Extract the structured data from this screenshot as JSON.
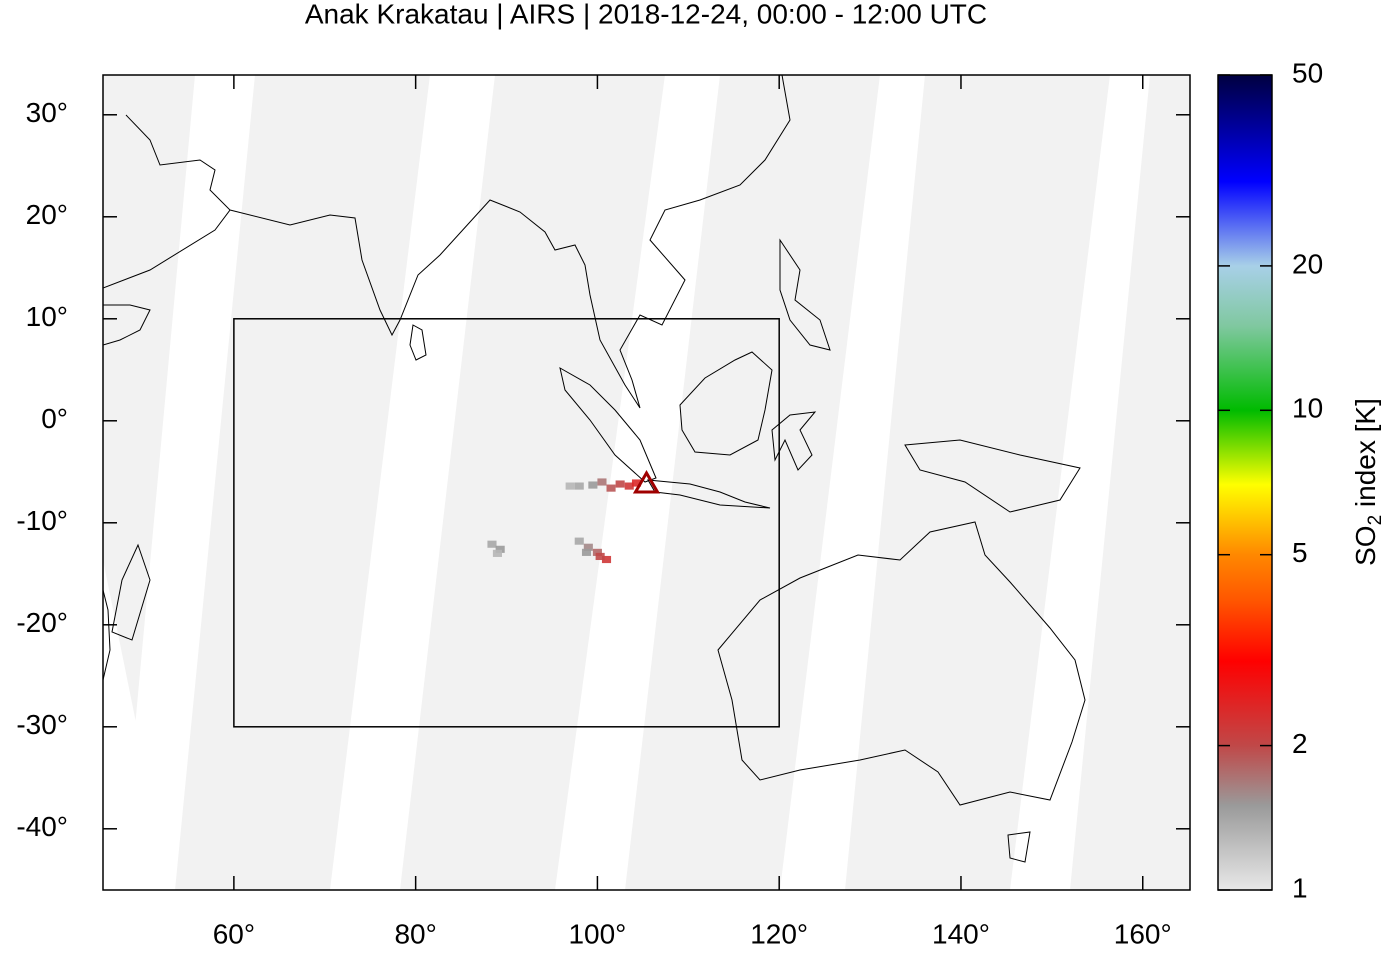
{
  "chart_data": {
    "type": "map",
    "title": "Anak Krakatau | AIRS | 2018-12-24, 00:00 - 12:00 UTC",
    "xlim": [
      45.6,
      165.2
    ],
    "ylim": [
      -46,
      33.9
    ],
    "xticks": [
      {
        "value": 60,
        "label": "60°"
      },
      {
        "value": 80,
        "label": "80°"
      },
      {
        "value": 100,
        "label": "100°"
      },
      {
        "value": 120,
        "label": "120°"
      },
      {
        "value": 140,
        "label": "140°"
      },
      {
        "value": 160,
        "label": "160°"
      }
    ],
    "yticks": [
      {
        "value": 30,
        "label": "30°"
      },
      {
        "value": 20,
        "label": "20°"
      },
      {
        "value": 10,
        "label": "10°"
      },
      {
        "value": 0,
        "label": "0°"
      },
      {
        "value": -10,
        "label": "-10°"
      },
      {
        "value": -20,
        "label": "-20°"
      },
      {
        "value": -30,
        "label": "-30°"
      },
      {
        "value": -40,
        "label": "-40°"
      }
    ],
    "region_box": {
      "lon": [
        60,
        120
      ],
      "lat": [
        -30,
        10
      ]
    },
    "volcano": {
      "lon": 105.4,
      "lat": -6.1,
      "color": "#a00000"
    },
    "so2": {
      "x": [
        97,
        98,
        99.5,
        100.5,
        101.5,
        102.5,
        103.5,
        104.3,
        88.4,
        89.3,
        89.0,
        98,
        99,
        100,
        101,
        100.3,
        98.8
      ],
      "y": [
        -6.4,
        -6.4,
        -6.3,
        -6.0,
        -6.6,
        -6.2,
        -6.4,
        -6.1,
        -12.1,
        -12.6,
        -13.0,
        -11.8,
        -12.4,
        -12.9,
        -13.6,
        -13.3,
        -12.9
      ],
      "values": [
        1.3,
        1.4,
        1.5,
        1.7,
        1.9,
        2.0,
        2.2,
        2.4,
        1.4,
        1.5,
        1.3,
        1.4,
        1.6,
        1.8,
        2.2,
        2.0,
        1.5
      ]
    },
    "colorbar": {
      "label": "SO",
      "label_sub": "2",
      "label_rest": " index [K]",
      "log": true,
      "lim": [
        1,
        50
      ],
      "ticks": [
        1,
        2,
        5,
        10,
        20,
        50
      ],
      "stops": {
        "values": [
          1,
          1.5,
          2,
          3,
          4,
          5,
          7,
          10,
          15,
          20,
          30,
          50
        ],
        "colors": [
          "#e8e8e8",
          "#9a9a9a",
          "#c04848",
          "#ff0000",
          "#ff5500",
          "#ff8800",
          "#ffff00",
          "#00bb00",
          "#80c8a0",
          "#a8d0e8",
          "#0000ff",
          "#000040"
        ]
      }
    }
  }
}
